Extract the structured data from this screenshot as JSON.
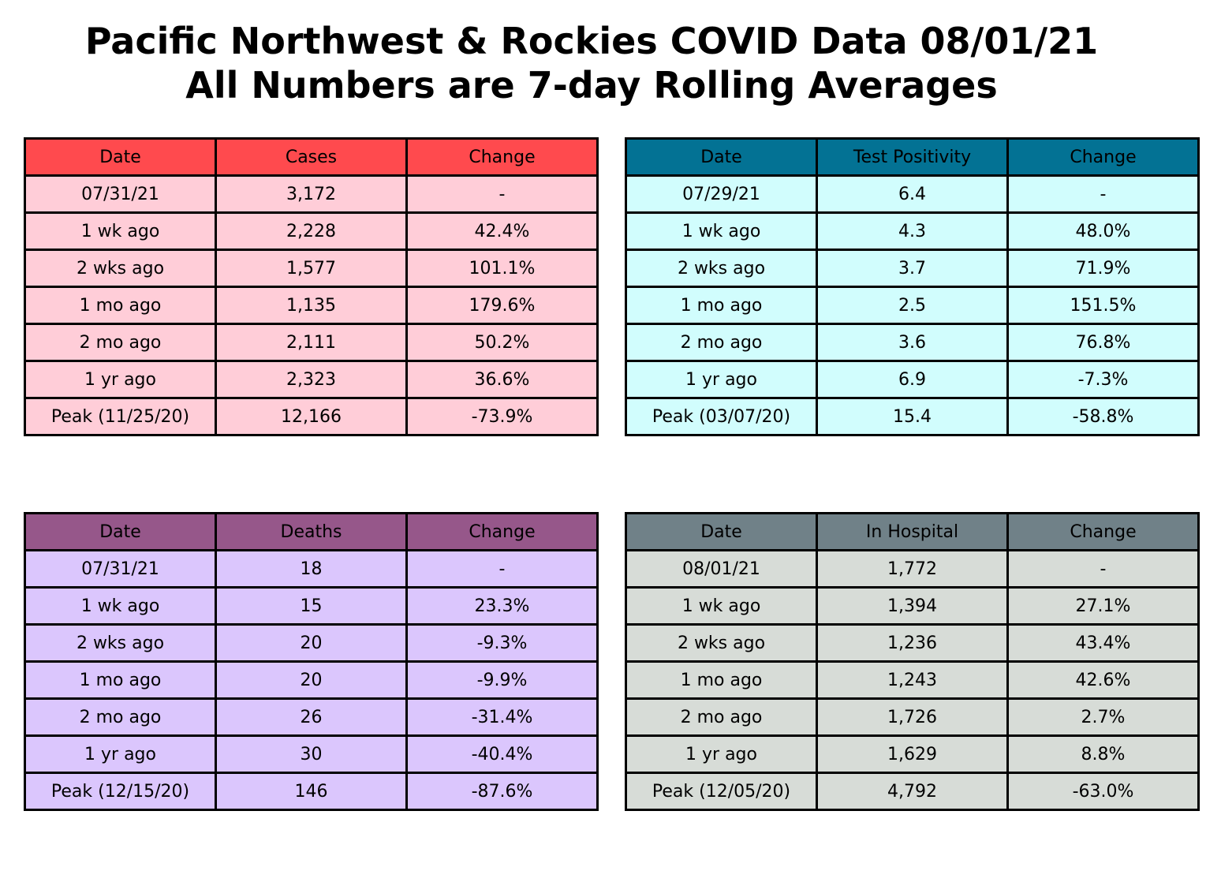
{
  "title": {
    "line1": "Pacific Northwest & Rockies COVID Data 08/01/21",
    "line2": "All Numbers are 7-day Rolling Averages"
  },
  "chart_data": [
    {
      "type": "table",
      "header_color": "#ff4a4e",
      "row_color": "#ffcdd8",
      "columns": [
        "Date",
        "Cases",
        "Change"
      ],
      "rows": [
        [
          "07/31/21",
          "3,172",
          "-"
        ],
        [
          "1 wk ago",
          "2,228",
          "42.4%"
        ],
        [
          "2 wks ago",
          "1,577",
          "101.1%"
        ],
        [
          "1 mo ago",
          "1,135",
          "179.6%"
        ],
        [
          "2 mo ago",
          "2,111",
          "50.2%"
        ],
        [
          "1 yr ago",
          "2,323",
          "36.6%"
        ],
        [
          "Peak (11/25/20)",
          "12,166",
          "-73.9%"
        ]
      ]
    },
    {
      "type": "table",
      "header_color": "#037294",
      "row_color": "#d1fdfd",
      "columns": [
        "Date",
        "Test Positivity",
        "Change"
      ],
      "rows": [
        [
          "07/29/21",
          "6.4",
          "-"
        ],
        [
          "1 wk ago",
          "4.3",
          "48.0%"
        ],
        [
          "2 wks ago",
          "3.7",
          "71.9%"
        ],
        [
          "1 mo ago",
          "2.5",
          "151.5%"
        ],
        [
          "2 mo ago",
          "3.6",
          "76.8%"
        ],
        [
          "1 yr ago",
          "6.9",
          "-7.3%"
        ],
        [
          "Peak (03/07/20)",
          "15.4",
          "-58.8%"
        ]
      ]
    },
    {
      "type": "table",
      "header_color": "#96578a",
      "row_color": "#dbc6fd",
      "columns": [
        "Date",
        "Deaths",
        "Change"
      ],
      "rows": [
        [
          "07/31/21",
          "18",
          "-"
        ],
        [
          "1 wk ago",
          "15",
          "23.3%"
        ],
        [
          "2 wks ago",
          "20",
          "-9.3%"
        ],
        [
          "1 mo ago",
          "20",
          "-9.9%"
        ],
        [
          "2 mo ago",
          "26",
          "-31.4%"
        ],
        [
          "1 yr ago",
          "30",
          "-40.4%"
        ],
        [
          "Peak (12/15/20)",
          "146",
          "-87.6%"
        ]
      ]
    },
    {
      "type": "table",
      "header_color": "#708188",
      "row_color": "#d7dcd7",
      "columns": [
        "Date",
        "In Hospital",
        "Change"
      ],
      "rows": [
        [
          "08/01/21",
          "1,772",
          "-"
        ],
        [
          "1 wk ago",
          "1,394",
          "27.1%"
        ],
        [
          "2 wks ago",
          "1,236",
          "43.4%"
        ],
        [
          "1 mo ago",
          "1,243",
          "42.6%"
        ],
        [
          "2 mo ago",
          "1,726",
          "2.7%"
        ],
        [
          "1 yr ago",
          "1,629",
          "8.8%"
        ],
        [
          "Peak (12/05/20)",
          "4,792",
          "-63.0%"
        ]
      ]
    }
  ]
}
